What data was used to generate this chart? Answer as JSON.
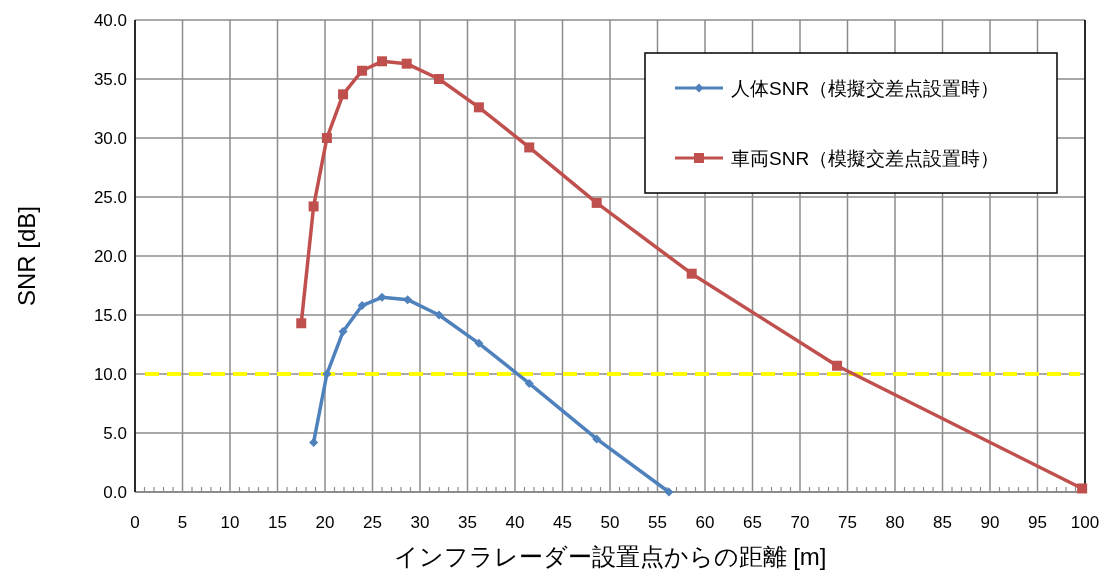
{
  "chart_data": {
    "type": "line",
    "xlabel": "インフラレーダー設置点からの距離 [m]",
    "ylabel": "SNR [dB]",
    "xlim": [
      0,
      100
    ],
    "xticks": [
      0,
      5,
      10,
      15,
      20,
      25,
      30,
      35,
      40,
      45,
      50,
      55,
      60,
      65,
      70,
      75,
      80,
      85,
      90,
      95,
      100
    ],
    "ylim": [
      0,
      40
    ],
    "yticks": [
      {
        "value": 0,
        "label": "0.0"
      },
      {
        "value": 5,
        "label": "5.0"
      },
      {
        "value": 10,
        "label": "10.0"
      },
      {
        "value": 15,
        "label": "15.0"
      },
      {
        "value": 20,
        "label": "20.0"
      },
      {
        "value": 25,
        "label": "25.0"
      },
      {
        "value": 30,
        "label": "30.0"
      },
      {
        "value": 35,
        "label": "35.0"
      },
      {
        "value": 40,
        "label": "40.0"
      }
    ],
    "grid": true,
    "legend": "top right",
    "line_style": "solid",
    "series": [
      {
        "name": "人体SNR（模擬交差点設置時）",
        "color": "#4f81bd",
        "marker": "diamond",
        "x": [
          18.8,
          20.2,
          21.9,
          23.9,
          26.0,
          28.7,
          32.0,
          36.2,
          41.5,
          48.6,
          56.2
        ],
        "values": [
          4.2,
          10.0,
          13.6,
          15.8,
          16.5,
          16.3,
          15.0,
          12.6,
          9.2,
          4.5,
          0.0
        ]
      },
      {
        "name": "車両SNR（模擬交差点設置時）",
        "color": "#c0504d",
        "marker": "square",
        "x": [
          17.5,
          18.8,
          20.2,
          21.9,
          23.9,
          26.0,
          28.6,
          32.0,
          36.2,
          41.5,
          48.6,
          58.6,
          73.9,
          99.7
        ],
        "values": [
          14.3,
          24.2,
          30.0,
          33.7,
          35.7,
          36.5,
          36.3,
          35.0,
          32.6,
          29.2,
          24.5,
          18.5,
          10.7,
          0.3
        ]
      }
    ],
    "ref_lines": [
      {
        "axis": "y",
        "value": 10,
        "color": "#ffff00",
        "line_style": "dashed"
      }
    ]
  }
}
